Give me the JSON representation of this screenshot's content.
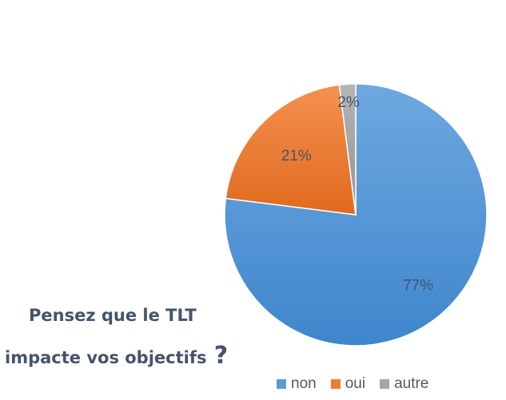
{
  "chart_data": {
    "type": "pie",
    "title": "Pensez que le TLT impacte vos objectifs ?",
    "title_lines": [
      "Pensez que le TLT",
      "impacte vos objectifs",
      "?"
    ],
    "slices": [
      {
        "label": "non",
        "value": 77,
        "display": "77%",
        "color": "#5b9bd5"
      },
      {
        "label": "oui",
        "value": 21,
        "display": "21%",
        "color": "#ed7d31"
      },
      {
        "label": "autre",
        "value": 2,
        "display": "2%",
        "color": "#a5a5a5"
      }
    ],
    "legend_position": "bottom-right",
    "data_labels": "inside"
  }
}
